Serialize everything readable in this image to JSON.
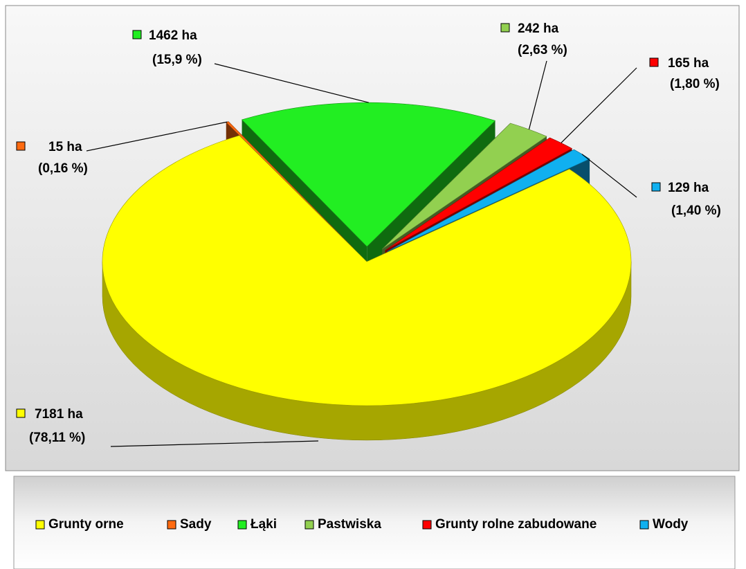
{
  "chart_data": {
    "type": "pie3d",
    "categories": [
      "Grunty orne",
      "Sady",
      "Łąki",
      "Pastwiska",
      "Grunty rolne zabudowane",
      "Wody"
    ],
    "values": [
      7181,
      15,
      1462,
      242,
      165,
      129
    ],
    "value_labels": [
      "7181 ha",
      "15 ha",
      "1462 ha",
      "242 ha",
      "165 ha",
      "129 ha"
    ],
    "percent_labels": [
      "(78,11 %)",
      "(0,16 %)",
      "(15,9 %)",
      "(2,63 %)",
      "(1,80 %)",
      "(1,40 %)"
    ],
    "colors": [
      "#ffff00",
      "#ff6a10",
      "#22ee22",
      "#92d050",
      "#ff0000",
      "#10b0f0"
    ],
    "legend": "bottom"
  }
}
